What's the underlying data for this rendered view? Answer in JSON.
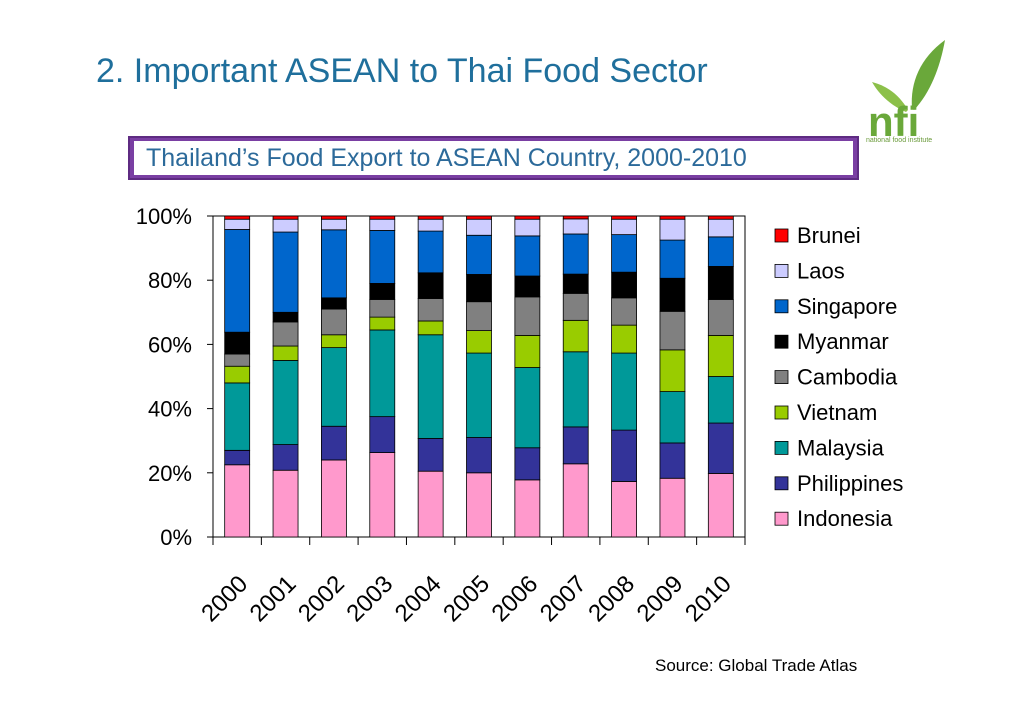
{
  "slide": {
    "title": "2. Important ASEAN to Thai Food Sector",
    "logo_text": "nfi",
    "logo_subtitle": "national food institute",
    "source": "Source: Global Trade Atlas"
  },
  "chart_data": {
    "type": "bar",
    "stacked": true,
    "normalized": true,
    "title": "Thailand’s Food Export to ASEAN Country, 2000-2010",
    "xlabel": "",
    "ylabel": "",
    "ylim": [
      0,
      100
    ],
    "y_ticks": [
      "0%",
      "20%",
      "40%",
      "60%",
      "80%",
      "100%"
    ],
    "categories": [
      "2000",
      "2001",
      "2002",
      "2003",
      "2004",
      "2005",
      "2006",
      "2007",
      "2008",
      "2009",
      "2010"
    ],
    "legend_position": "right",
    "grid": false,
    "series": [
      {
        "name": "Indonesia",
        "color": "#ff99cc",
        "values": [
          22.5,
          20.8,
          24.0,
          26.3,
          20.5,
          20.0,
          17.8,
          22.8,
          17.3,
          18.3,
          19.8
        ]
      },
      {
        "name": "Philippines",
        "color": "#333399",
        "values": [
          4.5,
          8.0,
          10.5,
          11.2,
          10.2,
          11.0,
          10.0,
          11.5,
          16.0,
          11.0,
          15.7
        ]
      },
      {
        "name": "Malaysia",
        "color": "#009999",
        "values": [
          21.0,
          26.2,
          24.5,
          27.0,
          32.3,
          26.3,
          25.0,
          23.4,
          24.0,
          16.0,
          14.5
        ]
      },
      {
        "name": "Vietnam",
        "color": "#99cc00",
        "values": [
          5.2,
          4.5,
          4.0,
          4.0,
          4.3,
          7.0,
          10.0,
          9.8,
          8.7,
          13.0,
          12.8
        ]
      },
      {
        "name": "Cambodia",
        "color": "#808080",
        "values": [
          3.8,
          7.5,
          8.0,
          5.5,
          7.0,
          9.0,
          12.0,
          8.4,
          8.5,
          12.0,
          11.2
        ]
      },
      {
        "name": "Myanmar",
        "color": "#000000",
        "values": [
          6.8,
          3.0,
          3.5,
          5.0,
          8.0,
          8.5,
          6.5,
          6.0,
          8.0,
          10.3,
          10.3
        ]
      },
      {
        "name": "Singapore",
        "color": "#0066cc",
        "values": [
          32.0,
          25.0,
          21.2,
          16.5,
          13.0,
          12.2,
          12.5,
          12.5,
          11.7,
          11.9,
          9.2
        ]
      },
      {
        "name": "Laos",
        "color": "#ccccff",
        "values": [
          3.2,
          4.0,
          3.3,
          3.5,
          3.7,
          5.0,
          5.2,
          4.7,
          4.8,
          6.5,
          5.5
        ]
      },
      {
        "name": "Brunei",
        "color": "#ff0000",
        "values": [
          1.0,
          1.0,
          1.0,
          1.0,
          1.0,
          1.0,
          1.0,
          0.9,
          1.0,
          1.0,
          1.0
        ]
      }
    ]
  }
}
